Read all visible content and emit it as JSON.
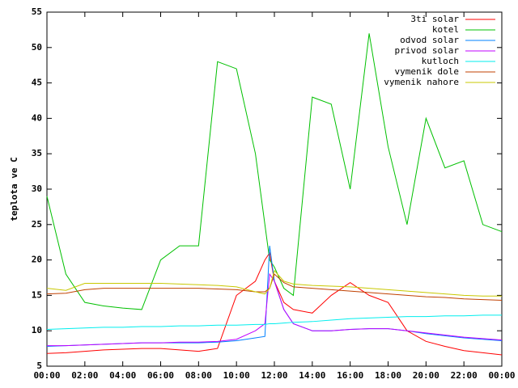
{
  "chart_data": {
    "type": "line",
    "y_label": "teplota ve C",
    "x": [
      0,
      1,
      2,
      3,
      4,
      5,
      6,
      7,
      8,
      9,
      10,
      11,
      11.5,
      11.75,
      12,
      12.5,
      13,
      14,
      15,
      16,
      17,
      18,
      19,
      20,
      21,
      22,
      23,
      24
    ],
    "xlim": [
      0,
      24
    ],
    "xticks": [
      {
        "value": 0,
        "label": "00:00"
      },
      {
        "value": 2,
        "label": "02:00"
      },
      {
        "value": 4,
        "label": "04:00"
      },
      {
        "value": 6,
        "label": "06:00"
      },
      {
        "value": 8,
        "label": "08:00"
      },
      {
        "value": 10,
        "label": "10:00"
      },
      {
        "value": 12,
        "label": "12:00"
      },
      {
        "value": 14,
        "label": "14:00"
      },
      {
        "value": 16,
        "label": "16:00"
      },
      {
        "value": 18,
        "label": "18:00"
      },
      {
        "value": 20,
        "label": "20:00"
      },
      {
        "value": 22,
        "label": "22:00"
      },
      {
        "value": 24,
        "label": "00:00"
      }
    ],
    "ylim": [
      5,
      55
    ],
    "yticks": [
      5,
      10,
      15,
      20,
      25,
      30,
      35,
      40,
      45,
      50,
      55
    ],
    "grid": false,
    "legend": "top-right",
    "series": [
      {
        "name": "3ti solar",
        "color": "#ff0000",
        "values": [
          6.8,
          6.9,
          7.1,
          7.3,
          7.4,
          7.5,
          7.5,
          7.3,
          7.1,
          7.5,
          15,
          17,
          20,
          21,
          17,
          14,
          13,
          12.5,
          15,
          16.8,
          15,
          14,
          10,
          8.5,
          7.8,
          7.2,
          6.9,
          6.6
        ]
      },
      {
        "name": "kotel",
        "color": "#00c000",
        "values": [
          29,
          18,
          14,
          13.5,
          13.2,
          13,
          20,
          22,
          22,
          48,
          47,
          35,
          25,
          20,
          19,
          16,
          15,
          43,
          42,
          30,
          52,
          36,
          25,
          40,
          33,
          34,
          25,
          24
        ]
      },
      {
        "name": "odvod solar",
        "color": "#0080ff",
        "values": [
          7.8,
          7.9,
          8,
          8.1,
          8.2,
          8.3,
          8.3,
          8.3,
          8.3,
          8.4,
          8.6,
          9,
          9.2,
          22,
          17,
          13,
          11,
          10,
          10,
          10.2,
          10.3,
          10.3,
          10,
          9.6,
          9.3,
          9,
          8.8,
          8.6
        ]
      },
      {
        "name": "privod solar",
        "color": "#c000ff",
        "values": [
          7.9,
          7.9,
          8,
          8.1,
          8.2,
          8.3,
          8.3,
          8.4,
          8.4,
          8.5,
          8.8,
          10,
          11,
          18,
          17,
          13,
          11,
          10,
          10,
          10.2,
          10.3,
          10.3,
          10,
          9.7,
          9.4,
          9.1,
          8.9,
          8.7
        ]
      },
      {
        "name": "kutloch",
        "color": "#00eeee",
        "values": [
          10.2,
          10.3,
          10.4,
          10.5,
          10.5,
          10.6,
          10.6,
          10.7,
          10.7,
          10.8,
          10.8,
          10.9,
          10.9,
          11,
          11,
          11.1,
          11.2,
          11.3,
          11.5,
          11.7,
          11.8,
          11.9,
          12,
          12,
          12.1,
          12.1,
          12.2,
          12.2
        ]
      },
      {
        "name": "vymenik dole",
        "color": "#c04000",
        "values": [
          15.2,
          15.3,
          15.8,
          16,
          16,
          16,
          16,
          16,
          16,
          15.9,
          15.8,
          15.5,
          15.5,
          16,
          18,
          16.8,
          16.2,
          16,
          15.8,
          15.6,
          15.4,
          15.2,
          15,
          14.8,
          14.7,
          14.5,
          14.4,
          14.3
        ]
      },
      {
        "name": "vymenik nahore",
        "color": "#c8c800",
        "values": [
          16,
          15.7,
          16.7,
          16.7,
          16.7,
          16.7,
          16.7,
          16.6,
          16.5,
          16.4,
          16.2,
          15.5,
          15.2,
          16,
          18.5,
          17,
          16.6,
          16.4,
          16.3,
          16.2,
          16,
          15.8,
          15.6,
          15.4,
          15.2,
          15,
          14.9,
          14.9
        ]
      }
    ]
  }
}
